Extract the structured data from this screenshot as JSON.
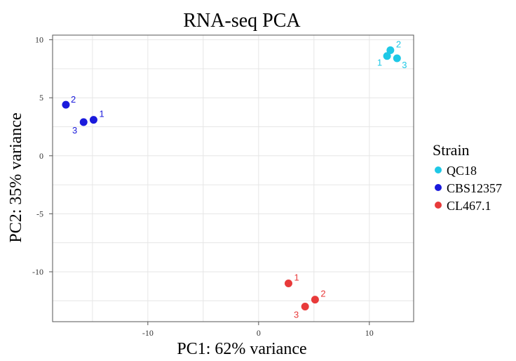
{
  "chart_data": {
    "type": "scatter",
    "title": "RNA-seq PCA",
    "xlabel": "PC1: 62% variance",
    "ylabel": "PC2: 35% variance",
    "xlim": [
      -18.6,
      14.0
    ],
    "ylim": [
      -14.3,
      10.4
    ],
    "xticks": [
      -10,
      0,
      10
    ],
    "yticks": [
      10,
      5,
      0,
      -5,
      -10
    ],
    "grid": true,
    "legend": {
      "title": "Strain",
      "position": "right"
    },
    "series": [
      {
        "name": "QC18",
        "color": "#1ec8e6",
        "points": [
          {
            "x": 11.6,
            "y": 8.6,
            "label": "1"
          },
          {
            "x": 11.9,
            "y": 9.1,
            "label": "2"
          },
          {
            "x": 12.5,
            "y": 8.4,
            "label": "3"
          }
        ]
      },
      {
        "name": "CBS12357",
        "color": "#1a1adc",
        "points": [
          {
            "x": -14.9,
            "y": 3.1,
            "label": "1"
          },
          {
            "x": -17.4,
            "y": 4.4,
            "label": "2"
          },
          {
            "x": -15.8,
            "y": 2.9,
            "label": "3"
          }
        ]
      },
      {
        "name": "CL467.1",
        "color": "#e83a3a",
        "points": [
          {
            "x": 2.7,
            "y": -11.0,
            "label": "1"
          },
          {
            "x": 5.1,
            "y": -12.4,
            "label": "2"
          },
          {
            "x": 4.2,
            "y": -13.0,
            "label": "3"
          }
        ]
      }
    ]
  }
}
